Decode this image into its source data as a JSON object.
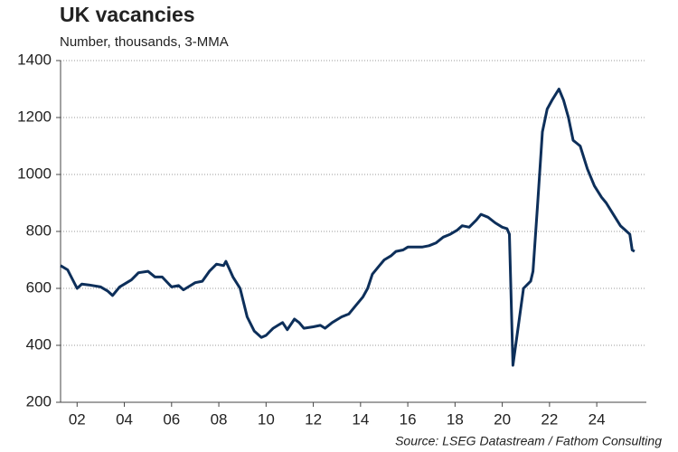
{
  "chart_data": {
    "type": "line",
    "title": "UK vacancies",
    "subtitle": "Number, thousands, 3-MMA",
    "source": "Source: LSEG Datastream / Fathom Consulting",
    "x": [
      2001.3,
      2001.6,
      2002.0,
      2002.2,
      2002.5,
      2003.0,
      2003.3,
      2003.5,
      2003.8,
      2004.0,
      2004.3,
      2004.6,
      2005.0,
      2005.3,
      2005.6,
      2006.0,
      2006.3,
      2006.5,
      2006.8,
      2007.0,
      2007.3,
      2007.6,
      2007.9,
      2008.2,
      2008.3,
      2008.6,
      2008.9,
      2009.2,
      2009.5,
      2009.8,
      2010.0,
      2010.3,
      2010.5,
      2010.7,
      2010.9,
      2011.2,
      2011.4,
      2011.6,
      2012.0,
      2012.3,
      2012.5,
      2012.8,
      2013.2,
      2013.5,
      2013.8,
      2014.1,
      2014.3,
      2014.5,
      2014.8,
      2015.0,
      2015.3,
      2015.5,
      2015.8,
      2016.0,
      2016.3,
      2016.6,
      2016.9,
      2017.2,
      2017.5,
      2017.8,
      2018.1,
      2018.3,
      2018.6,
      2018.9,
      2019.1,
      2019.4,
      2019.7,
      2020.0,
      2020.2,
      2020.3,
      2020.45,
      2020.7,
      2020.9,
      2021.2,
      2021.3,
      2021.5,
      2021.7,
      2021.9,
      2022.1,
      2022.4,
      2022.6,
      2022.8,
      2023.0,
      2023.3,
      2023.6,
      2023.9,
      2024.2,
      2024.4,
      2024.7,
      2025.0,
      2025.2,
      2025.4,
      2025.5,
      2025.6
    ],
    "series": [
      {
        "name": "UK vacancies",
        "color": "#0d2f5a",
        "values": [
          680,
          665,
          600,
          615,
          612,
          605,
          590,
          575,
          605,
          615,
          630,
          655,
          660,
          640,
          640,
          605,
          610,
          595,
          610,
          620,
          625,
          660,
          685,
          680,
          695,
          640,
          600,
          500,
          450,
          428,
          435,
          460,
          470,
          480,
          455,
          492,
          480,
          460,
          465,
          470,
          460,
          480,
          500,
          510,
          540,
          570,
          600,
          650,
          680,
          700,
          715,
          730,
          735,
          745,
          745,
          745,
          750,
          760,
          780,
          790,
          805,
          820,
          815,
          840,
          860,
          850,
          830,
          815,
          810,
          790,
          330,
          480,
          600,
          625,
          660,
          900,
          1150,
          1230,
          1260,
          1300,
          1260,
          1200,
          1120,
          1100,
          1020,
          960,
          920,
          900,
          860,
          820,
          805,
          790,
          735,
          730
        ]
      }
    ],
    "xlim": [
      2001.3,
      2026.1
    ],
    "xticks": [
      {
        "value": 2002,
        "label": "02"
      },
      {
        "value": 2004,
        "label": "04"
      },
      {
        "value": 2006,
        "label": "06"
      },
      {
        "value": 2008,
        "label": "08"
      },
      {
        "value": 2010,
        "label": "10"
      },
      {
        "value": 2012,
        "label": "12"
      },
      {
        "value": 2014,
        "label": "14"
      },
      {
        "value": 2016,
        "label": "16"
      },
      {
        "value": 2018,
        "label": "18"
      },
      {
        "value": 2020,
        "label": "20"
      },
      {
        "value": 2022,
        "label": "22"
      },
      {
        "value": 2024,
        "label": "24"
      }
    ],
    "ylim": [
      200,
      1400
    ],
    "yticks": [
      200,
      400,
      600,
      800,
      1000,
      1200,
      1400
    ],
    "grid": true
  }
}
